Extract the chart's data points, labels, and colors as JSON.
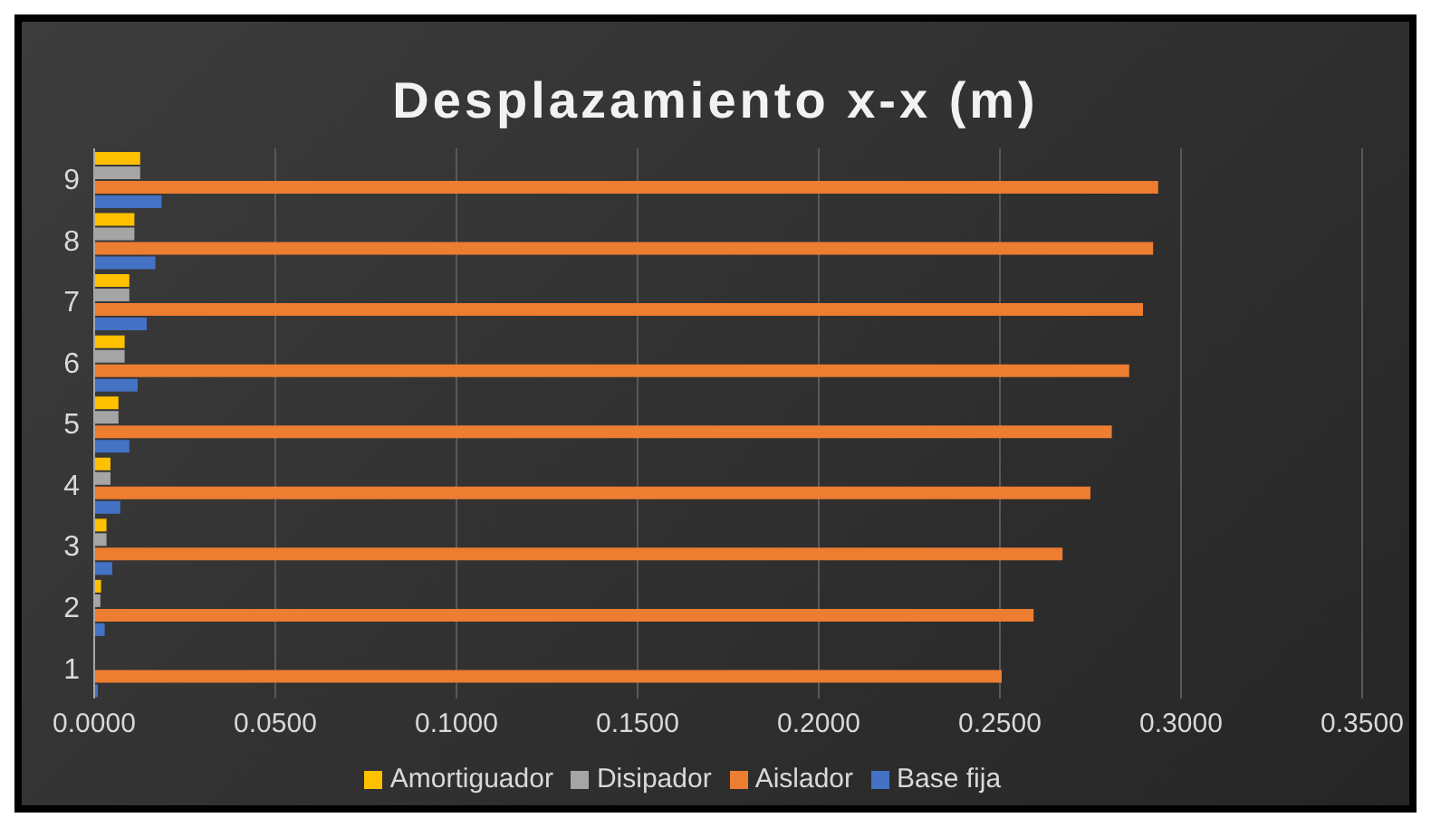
{
  "chart_data": {
    "type": "bar",
    "orientation": "horizontal",
    "title": "Desplazamiento x-x (m)",
    "categories": [
      "9",
      "8",
      "7",
      "6",
      "5",
      "4",
      "3",
      "2",
      "1"
    ],
    "series": [
      {
        "name": "Amortiguador",
        "color": "#ffc000",
        "values": [
          0.0127,
          0.0111,
          0.0097,
          0.0084,
          0.0067,
          0.0045,
          0.0034,
          0.0019,
          null
        ]
      },
      {
        "name": "Disipador",
        "color": "#a5a5a5",
        "values": [
          0.0127,
          0.0111,
          0.0097,
          0.0084,
          0.0067,
          0.0045,
          0.0034,
          0.0017,
          null
        ]
      },
      {
        "name": "Aislador",
        "color": "#ed7d31",
        "values": [
          0.2937,
          0.2923,
          0.2895,
          0.2857,
          0.2809,
          0.275,
          0.2673,
          0.2593,
          0.2505
        ]
      },
      {
        "name": "Base fija",
        "color": "#4472c4",
        "values": [
          0.0186,
          0.0169,
          0.0145,
          0.012,
          0.0097,
          0.0072,
          0.005,
          0.0029,
          0.001
        ]
      }
    ],
    "xlim": [
      0,
      0.35
    ],
    "xticks": [
      {
        "value": 0,
        "label": "0.0000"
      },
      {
        "value": 0.05,
        "label": "0.0500"
      },
      {
        "value": 0.1,
        "label": "0.1000"
      },
      {
        "value": 0.15,
        "label": "0.1500"
      },
      {
        "value": 0.2,
        "label": "0.2000"
      },
      {
        "value": 0.25,
        "label": "0.2500"
      },
      {
        "value": 0.3,
        "label": "0.3000"
      },
      {
        "value": 0.35,
        "label": "0.3500"
      }
    ],
    "grid": "x",
    "legend": "bottom"
  }
}
